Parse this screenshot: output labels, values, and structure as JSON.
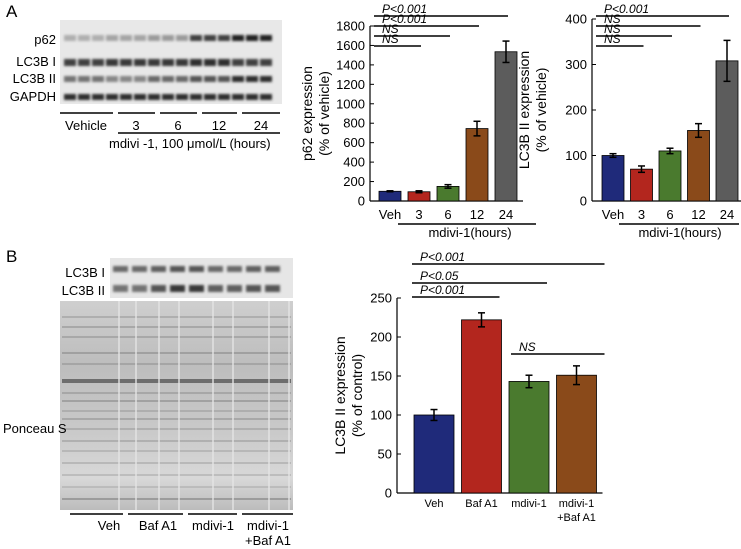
{
  "panel_a": {
    "letter": "A",
    "blot": {
      "rows": [
        "p62",
        "LC3B I",
        "LC3B II",
        "GAPDH"
      ],
      "lanes": [
        "Vehicle",
        "3",
        "6",
        "12",
        "24"
      ],
      "treatment": "mdivi -1, 100 μmol/L (hours)"
    }
  },
  "panel_b": {
    "letter": "B",
    "blot": {
      "rows": [
        "LC3B I",
        "LC3B II"
      ],
      "stain": "Ponceau S",
      "lanes": [
        "Veh",
        "Baf A1",
        "mdivi-1",
        "mdivi-1",
        "+Baf A1"
      ]
    }
  },
  "chart_data": [
    {
      "type": "bar",
      "categories": [
        "Veh",
        "3",
        "6",
        "12",
        "24"
      ],
      "values": [
        100,
        95,
        150,
        745,
        1535
      ],
      "errors": [
        5,
        10,
        18,
        75,
        110
      ],
      "colors": [
        "#1f2a7a",
        "#b3261e",
        "#4a7a2e",
        "#8a4a1a",
        "#5c5c5c"
      ],
      "ylabel_lines": [
        "p62 expression",
        "(% of vehicle)"
      ],
      "xlabel": "mdivi-1(hours)",
      "ylim": [
        0,
        1800
      ],
      "yticks": [
        0,
        200,
        400,
        600,
        800,
        1000,
        1200,
        1400,
        1600,
        1800
      ],
      "significance": [
        {
          "from": 0,
          "to": 1,
          "label": "NS"
        },
        {
          "from": 0,
          "to": 2,
          "label": "NS"
        },
        {
          "from": 0,
          "to": 3,
          "label": "P<0.001"
        },
        {
          "from": 0,
          "to": 4,
          "label": "P<0.001"
        }
      ]
    },
    {
      "type": "bar",
      "categories": [
        "Veh",
        "3",
        "6",
        "12",
        "24"
      ],
      "values": [
        100,
        70,
        110,
        155,
        308
      ],
      "errors": [
        4,
        7,
        6,
        15,
        45
      ],
      "colors": [
        "#1f2a7a",
        "#b3261e",
        "#4a7a2e",
        "#8a4a1a",
        "#5c5c5c"
      ],
      "ylabel_lines": [
        "LC3B II expression",
        "(% of vehicle)"
      ],
      "xlabel": "mdivi-1(hours)",
      "ylim": [
        0,
        400
      ],
      "yticks": [
        0,
        100,
        200,
        300,
        400
      ],
      "significance": [
        {
          "from": 0,
          "to": 1,
          "label": "NS"
        },
        {
          "from": 0,
          "to": 2,
          "label": "NS"
        },
        {
          "from": 0,
          "to": 3,
          "label": "NS"
        },
        {
          "from": 0,
          "to": 4,
          "label": "P<0.001"
        }
      ]
    },
    {
      "type": "bar",
      "categories": [
        "Veh",
        "Baf A1",
        "mdivi-1",
        "mdivi-1\n+Baf A1"
      ],
      "values": [
        100,
        222,
        143,
        151
      ],
      "errors": [
        7,
        9,
        8,
        12
      ],
      "colors": [
        "#1f2a7a",
        "#b3261e",
        "#4a7a2e",
        "#8a4a1a"
      ],
      "ylabel_lines": [
        "LC3B II expression",
        "(% of control)"
      ],
      "ylim": [
        0,
        250
      ],
      "yticks": [
        0,
        50,
        100,
        150,
        200,
        250
      ],
      "significance": [
        {
          "from": 0,
          "to": 1,
          "label": "P<0.001"
        },
        {
          "from": 0,
          "to": 2,
          "label": "P<0.05"
        },
        {
          "from": 0,
          "to": 3,
          "label": "P<0.001"
        },
        {
          "from": 2,
          "to": 3,
          "label": "NS"
        }
      ]
    }
  ]
}
